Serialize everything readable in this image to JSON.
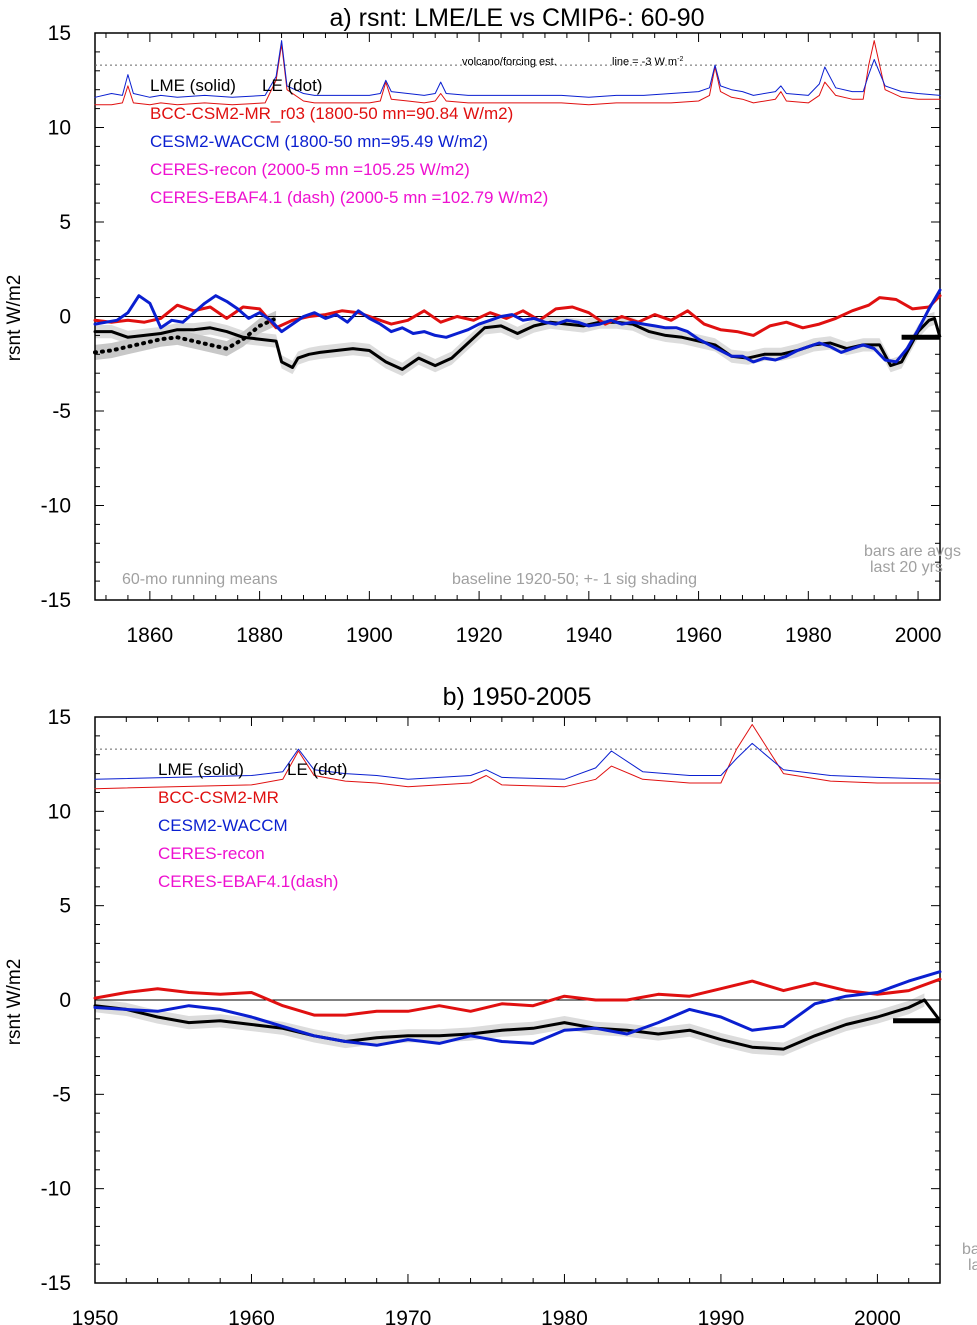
{
  "colors": {
    "lme": "#000000",
    "bcc": "#e01010",
    "cesm": "#0a1fd0",
    "ceres": "#ee10d0",
    "shade": "#dcdcdc",
    "note": "#a0a0a0"
  },
  "panel_a": {
    "title": "a) rsnt: LME/LE vs CMIP6-: 60-90",
    "ylabel": "rsnt W/m2",
    "legend": {
      "lme": "LME (solid)",
      "le": "LE (dot)",
      "bcc": "BCC-CSM2-MR_r03 (1800-50 mn=90.84 W/m2)",
      "cesm": "CESM2-WACCM (1800-50 mn=95.49 W/m2)",
      "ceres_recon": "CERES-recon (2000-5 mn =105.25 W/m2)",
      "ceres_ebaf": "CERES-EBAF4.1 (dash) (2000-5 mn =102.79 W/m2)"
    },
    "volcano_note": "volcano/forcing est.",
    "line_note_main": "line = -3 W m",
    "line_note_sup": "-2",
    "note_running": "60-mo running means",
    "note_baseline": "baseline 1920-50; +- 1 sig shading",
    "note_bars_1": "bars are avgs",
    "note_bars_2": "last 20 yrs"
  },
  "panel_b": {
    "title": "b) 1950-2005",
    "ylabel": "rsnt W/m2",
    "legend": {
      "lme": "LME (solid)",
      "le": "LE (dot)",
      "bcc": "BCC-CSM2-MR",
      "cesm": "CESM2-WACCM",
      "ceres_recon": "CERES-recon",
      "ceres_ebaf": "CERES-EBAF4.1(dash)"
    },
    "note_bars_1": "ba",
    "note_bars_2": "la"
  },
  "chart_data": [
    {
      "type": "line",
      "title": "a) rsnt: LME/LE vs CMIP6-: 60-90",
      "ylabel": "rsnt W/m2",
      "xlim": [
        1850,
        2004
      ],
      "ylim": [
        -15,
        15
      ],
      "xticks": [
        1860,
        1880,
        1900,
        1920,
        1940,
        1960,
        1980,
        2000
      ],
      "yticks": [
        -15,
        -10,
        -5,
        0,
        5,
        10,
        15
      ],
      "hlines": [
        0,
        13.3
      ],
      "series": [
        {
          "name": "LME (solid)",
          "color": "lme",
          "x": [
            1850,
            1853,
            1856,
            1859,
            1862,
            1865,
            1868,
            1871,
            1874,
            1877,
            1880,
            1883,
            1884,
            1886,
            1887,
            1889,
            1891,
            1894,
            1897,
            1900,
            1903,
            1906,
            1909,
            1912,
            1915,
            1918,
            1921,
            1924,
            1927,
            1930,
            1933,
            1936,
            1939,
            1942,
            1945,
            1948,
            1951,
            1954,
            1957,
            1960,
            1963,
            1966,
            1969,
            1972,
            1975,
            1978,
            1981,
            1984,
            1987,
            1990,
            1993,
            1995,
            1997,
            2000,
            2002,
            2003
          ],
          "y": [
            -0.8,
            -0.8,
            -1.1,
            -1.0,
            -0.9,
            -0.7,
            -0.7,
            -0.6,
            -0.8,
            -1.1,
            -1.2,
            -1.3,
            -2.4,
            -2.7,
            -2.2,
            -2.0,
            -1.9,
            -1.8,
            -1.7,
            -1.8,
            -2.4,
            -2.8,
            -2.2,
            -2.6,
            -2.2,
            -1.4,
            -0.6,
            -0.5,
            -0.9,
            -0.5,
            -0.3,
            -0.4,
            -0.5,
            -0.3,
            -0.3,
            -0.4,
            -0.8,
            -1.0,
            -1.1,
            -1.3,
            -1.5,
            -2.1,
            -2.2,
            -2.0,
            -2.0,
            -1.8,
            -1.5,
            -1.4,
            -1.7,
            -1.5,
            -1.5,
            -2.6,
            -2.4,
            -0.8,
            -0.2,
            -0.1
          ]
        },
        {
          "name": "LE (dot)",
          "color": "lme",
          "x": [
            1850,
            1853,
            1856,
            1859,
            1862,
            1865,
            1868,
            1871,
            1874,
            1877,
            1880,
            1883
          ],
          "y": [
            -1.9,
            -1.8,
            -1.6,
            -1.4,
            -1.2,
            -1.1,
            -1.3,
            -1.5,
            -1.7,
            -1.2,
            -0.5,
            -0.1
          ]
        },
        {
          "name": "BCC-CSM2-MR_r03 (1800-50 mn=90.84 W/m2)",
          "color": "bcc",
          "x": [
            1850,
            1853,
            1856,
            1859,
            1862,
            1865,
            1868,
            1871,
            1874,
            1877,
            1880,
            1883,
            1886,
            1889,
            1892,
            1895,
            1898,
            1901,
            1904,
            1907,
            1910,
            1913,
            1916,
            1919,
            1922,
            1925,
            1928,
            1931,
            1934,
            1937,
            1940,
            1943,
            1946,
            1949,
            1952,
            1955,
            1958,
            1961,
            1964,
            1967,
            1970,
            1973,
            1976,
            1979,
            1982,
            1985,
            1988,
            1991,
            1993,
            1996,
            1999,
            2002,
            2004
          ],
          "y": [
            -0.2,
            -0.3,
            -0.2,
            -0.3,
            -0.1,
            0.6,
            0.3,
            0.5,
            -0.1,
            0.5,
            0.4,
            -0.6,
            -0.2,
            0.0,
            0.1,
            0.3,
            0.2,
            -0.1,
            -0.4,
            -0.2,
            0.3,
            -0.3,
            0.0,
            -0.2,
            0.2,
            -0.1,
            0.3,
            -0.2,
            0.4,
            0.5,
            0.2,
            -0.4,
            0.0,
            -0.3,
            0.1,
            -0.2,
            0.3,
            -0.4,
            -0.7,
            -0.8,
            -1.0,
            -0.5,
            -0.3,
            -0.6,
            -0.4,
            -0.1,
            0.3,
            0.6,
            1.0,
            0.9,
            0.4,
            0.5,
            1.1
          ]
        },
        {
          "name": "CESM2-WACCM (1800-50 mn=95.49 W/m2)",
          "color": "cesm",
          "x": [
            1850,
            1852,
            1854,
            1856,
            1858,
            1860,
            1862,
            1864,
            1866,
            1868,
            1870,
            1872,
            1874,
            1876,
            1878,
            1880,
            1882,
            1884,
            1886,
            1888,
            1890,
            1892,
            1894,
            1896,
            1898,
            1900,
            1902,
            1904,
            1906,
            1908,
            1910,
            1912,
            1914,
            1916,
            1918,
            1920,
            1922,
            1924,
            1926,
            1928,
            1930,
            1932,
            1934,
            1936,
            1938,
            1940,
            1942,
            1944,
            1946,
            1948,
            1950,
            1952,
            1954,
            1956,
            1958,
            1960,
            1962,
            1964,
            1966,
            1968,
            1970,
            1972,
            1974,
            1976,
            1978,
            1980,
            1982,
            1984,
            1986,
            1988,
            1990,
            1992,
            1994,
            1996,
            1998,
            2000,
            2002,
            2004
          ],
          "y": [
            -0.4,
            -0.3,
            -0.2,
            0.2,
            1.1,
            0.7,
            -0.6,
            -0.2,
            -0.3,
            0.2,
            0.7,
            1.1,
            0.8,
            0.4,
            -0.1,
            0.2,
            -0.2,
            -0.8,
            -0.4,
            0.0,
            0.2,
            -0.1,
            0.1,
            -0.3,
            0.3,
            -0.1,
            -0.4,
            -0.8,
            -0.6,
            -0.9,
            -0.8,
            -1.0,
            -1.1,
            -0.9,
            -0.7,
            -0.4,
            -0.2,
            0.0,
            0.1,
            -0.2,
            -0.1,
            -0.3,
            -0.4,
            -0.2,
            -0.3,
            -0.5,
            -0.4,
            -0.2,
            -0.4,
            -0.3,
            -0.4,
            -0.5,
            -0.6,
            -0.6,
            -0.8,
            -1.2,
            -1.5,
            -1.8,
            -2.1,
            -2.1,
            -2.4,
            -2.2,
            -2.3,
            -2.1,
            -1.8,
            -1.6,
            -1.4,
            -1.6,
            -1.9,
            -1.7,
            -1.5,
            -1.7,
            -2.3,
            -2.4,
            -1.7,
            -0.7,
            0.4,
            1.4
          ]
        },
        {
          "name": "volcano/forcing est. (BCC)",
          "color": "bcc",
          "x": [
            1850,
            1853,
            1855,
            1856,
            1857,
            1860,
            1862,
            1865,
            1870,
            1875,
            1881,
            1883,
            1884,
            1885,
            1888,
            1890,
            1895,
            1900,
            1902,
            1903,
            1904,
            1907,
            1910,
            1912,
            1913,
            1914,
            1918,
            1925,
            1930,
            1935,
            1940,
            1945,
            1950,
            1955,
            1960,
            1962,
            1963,
            1964,
            1966,
            1968,
            1970,
            1974,
            1975,
            1976,
            1980,
            1982,
            1983,
            1985,
            1988,
            1990,
            1991,
            1992,
            1994,
            1997,
            2000,
            2004
          ],
          "y": [
            11.2,
            11.2,
            11.3,
            12.2,
            11.3,
            11.2,
            11.3,
            11.2,
            11.3,
            11.2,
            11.3,
            12.5,
            14.4,
            12.0,
            11.4,
            11.3,
            11.3,
            11.3,
            11.4,
            12.4,
            11.5,
            11.4,
            11.3,
            11.4,
            11.8,
            11.4,
            11.3,
            11.3,
            11.3,
            11.3,
            11.2,
            11.3,
            11.3,
            11.3,
            11.4,
            11.7,
            13.2,
            11.9,
            11.6,
            11.5,
            11.3,
            11.5,
            11.9,
            11.4,
            11.3,
            11.7,
            12.4,
            11.7,
            11.5,
            11.5,
            13.3,
            14.6,
            12.0,
            11.6,
            11.5,
            11.5
          ]
        },
        {
          "name": "volcano/forcing est. (CESM)",
          "color": "cesm",
          "x": [
            1850,
            1853,
            1855,
            1856,
            1857,
            1860,
            1862,
            1865,
            1870,
            1875,
            1881,
            1883,
            1884,
            1885,
            1888,
            1890,
            1895,
            1900,
            1902,
            1903,
            1904,
            1907,
            1910,
            1912,
            1913,
            1914,
            1918,
            1925,
            1930,
            1935,
            1940,
            1945,
            1950,
            1955,
            1960,
            1962,
            1963,
            1964,
            1966,
            1968,
            1970,
            1974,
            1975,
            1976,
            1980,
            1982,
            1983,
            1985,
            1988,
            1990,
            1991,
            1992,
            1994,
            1997,
            2000,
            2004
          ],
          "y": [
            11.6,
            11.8,
            11.7,
            12.8,
            11.8,
            11.6,
            11.7,
            11.6,
            11.7,
            11.6,
            11.7,
            12.7,
            14.6,
            12.2,
            11.8,
            11.7,
            11.7,
            11.7,
            11.8,
            12.5,
            11.9,
            11.8,
            11.7,
            11.8,
            12.4,
            11.8,
            11.7,
            11.7,
            11.7,
            11.7,
            11.6,
            11.7,
            11.7,
            11.8,
            11.9,
            12.1,
            13.3,
            12.2,
            12.0,
            11.9,
            11.7,
            11.9,
            12.2,
            11.8,
            11.7,
            12.3,
            13.2,
            12.1,
            11.9,
            11.9,
            12.8,
            13.6,
            12.2,
            11.9,
            11.8,
            11.7
          ]
        }
      ]
    },
    {
      "type": "line",
      "title": "b) 1950-2005",
      "ylabel": "rsnt W/m2",
      "xlim": [
        1950,
        2004
      ],
      "ylim": [
        -15,
        15
      ],
      "xticks": [
        1950,
        1960,
        1970,
        1980,
        1990,
        2000
      ],
      "yticks": [
        -15,
        -10,
        -5,
        0,
        5,
        10,
        15
      ],
      "hlines": [
        0,
        13.3
      ],
      "series": [
        {
          "name": "LME (solid)",
          "color": "lme",
          "x": [
            1950,
            1952,
            1954,
            1956,
            1958,
            1960,
            1962,
            1964,
            1966,
            1968,
            1970,
            1972,
            1974,
            1976,
            1978,
            1980,
            1982,
            1984,
            1986,
            1988,
            1990,
            1992,
            1994,
            1996,
            1998,
            2000,
            2002,
            2003
          ],
          "y": [
            -0.3,
            -0.5,
            -0.9,
            -1.2,
            -1.1,
            -1.3,
            -1.5,
            -1.9,
            -2.2,
            -2.0,
            -1.9,
            -1.9,
            -1.8,
            -1.6,
            -1.5,
            -1.2,
            -1.5,
            -1.6,
            -1.8,
            -1.6,
            -2.1,
            -2.5,
            -2.6,
            -1.9,
            -1.3,
            -0.9,
            -0.4,
            0.0
          ]
        },
        {
          "name": "BCC-CSM2-MR",
          "color": "bcc",
          "x": [
            1950,
            1952,
            1954,
            1956,
            1958,
            1960,
            1962,
            1964,
            1966,
            1968,
            1970,
            1972,
            1974,
            1976,
            1978,
            1980,
            1982,
            1984,
            1986,
            1988,
            1990,
            1992,
            1994,
            1996,
            1998,
            2000,
            2002,
            2004
          ],
          "y": [
            0.1,
            0.4,
            0.6,
            0.4,
            0.3,
            0.4,
            -0.3,
            -0.8,
            -0.8,
            -0.6,
            -0.6,
            -0.3,
            -0.6,
            -0.2,
            -0.3,
            0.2,
            0.0,
            0.0,
            0.3,
            0.2,
            0.6,
            1.0,
            0.5,
            0.9,
            0.5,
            0.3,
            0.5,
            1.1
          ]
        },
        {
          "name": "CESM2-WACCM",
          "color": "cesm",
          "x": [
            1950,
            1952,
            1954,
            1956,
            1958,
            1960,
            1962,
            1964,
            1966,
            1968,
            1970,
            1972,
            1974,
            1976,
            1978,
            1980,
            1982,
            1984,
            1986,
            1988,
            1990,
            1992,
            1994,
            1996,
            1998,
            2000,
            2002,
            2004
          ],
          "y": [
            -0.4,
            -0.5,
            -0.6,
            -0.3,
            -0.5,
            -0.9,
            -1.4,
            -1.9,
            -2.2,
            -2.4,
            -2.1,
            -2.3,
            -1.9,
            -2.2,
            -2.3,
            -1.6,
            -1.5,
            -1.8,
            -1.2,
            -0.5,
            -0.9,
            -1.6,
            -1.4,
            -0.2,
            0.2,
            0.4,
            1.0,
            1.5
          ]
        },
        {
          "name": "volcano/forcing est. (BCC)",
          "color": "bcc",
          "x": [
            1950,
            1955,
            1960,
            1962,
            1963,
            1964,
            1966,
            1968,
            1970,
            1974,
            1975,
            1976,
            1980,
            1982,
            1983,
            1985,
            1988,
            1990,
            1991,
            1992,
            1994,
            1997,
            2000,
            2004
          ],
          "y": [
            11.2,
            11.3,
            11.4,
            11.7,
            13.2,
            11.9,
            11.6,
            11.5,
            11.3,
            11.5,
            11.9,
            11.4,
            11.3,
            11.7,
            12.4,
            11.7,
            11.5,
            11.5,
            13.3,
            14.6,
            12.0,
            11.6,
            11.5,
            11.5
          ]
        },
        {
          "name": "volcano/forcing est. (CESM)",
          "color": "cesm",
          "x": [
            1950,
            1955,
            1960,
            1962,
            1963,
            1964,
            1966,
            1968,
            1970,
            1974,
            1975,
            1976,
            1980,
            1982,
            1983,
            1985,
            1988,
            1990,
            1991,
            1992,
            1994,
            1997,
            2000,
            2004
          ],
          "y": [
            11.7,
            11.8,
            11.9,
            12.1,
            13.3,
            12.2,
            12.0,
            11.9,
            11.7,
            11.9,
            12.2,
            11.8,
            11.7,
            12.3,
            13.2,
            12.1,
            11.9,
            11.9,
            12.8,
            13.6,
            12.2,
            11.9,
            11.8,
            11.7
          ]
        }
      ]
    }
  ]
}
